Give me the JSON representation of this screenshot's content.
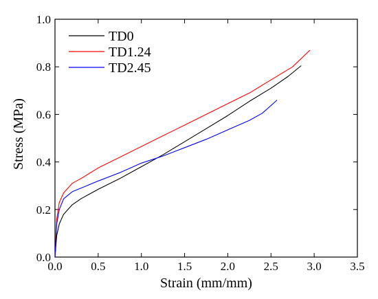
{
  "chart_data": {
    "type": "line",
    "title": "",
    "xlabel": "Strain (mm/mm)",
    "ylabel": "Stress (MPa)",
    "xlim": [
      0.0,
      3.5
    ],
    "ylim": [
      0.0,
      1.0
    ],
    "xticks": [
      "0.0",
      "0.5",
      "1.0",
      "1.5",
      "2.0",
      "2.5",
      "3.0",
      "3.5"
    ],
    "yticks": [
      "0.0",
      "0.2",
      "0.4",
      "0.6",
      "0.8",
      "1.0"
    ],
    "grid": false,
    "legend_position": "top-left",
    "series": [
      {
        "name": "TD0",
        "color": "#000000",
        "x": [
          0.0,
          0.02,
          0.05,
          0.1,
          0.2,
          0.3,
          0.5,
          0.75,
          1.0,
          1.25,
          1.5,
          1.75,
          2.0,
          2.25,
          2.5,
          2.7,
          2.85
        ],
        "y": [
          0.0,
          0.09,
          0.14,
          0.18,
          0.22,
          0.245,
          0.285,
          0.33,
          0.38,
          0.43,
          0.485,
          0.54,
          0.595,
          0.655,
          0.71,
          0.76,
          0.805
        ]
      },
      {
        "name": "TD1.24",
        "color": "#ff0000",
        "x": [
          0.0,
          0.02,
          0.05,
          0.1,
          0.2,
          0.3,
          0.5,
          0.75,
          1.0,
          1.25,
          1.5,
          1.75,
          2.0,
          2.25,
          2.5,
          2.75,
          2.95
        ],
        "y": [
          0.0,
          0.16,
          0.23,
          0.27,
          0.31,
          0.33,
          0.375,
          0.42,
          0.465,
          0.51,
          0.555,
          0.6,
          0.645,
          0.69,
          0.745,
          0.8,
          0.87
        ]
      },
      {
        "name": "TD2.45",
        "color": "#0000ff",
        "x": [
          0.0,
          0.02,
          0.05,
          0.1,
          0.2,
          0.3,
          0.5,
          0.75,
          1.0,
          1.25,
          1.5,
          1.75,
          2.0,
          2.25,
          2.4,
          2.57
        ],
        "y": [
          0.0,
          0.14,
          0.2,
          0.245,
          0.275,
          0.29,
          0.32,
          0.355,
          0.395,
          0.425,
          0.46,
          0.495,
          0.535,
          0.575,
          0.605,
          0.66
        ]
      }
    ]
  }
}
